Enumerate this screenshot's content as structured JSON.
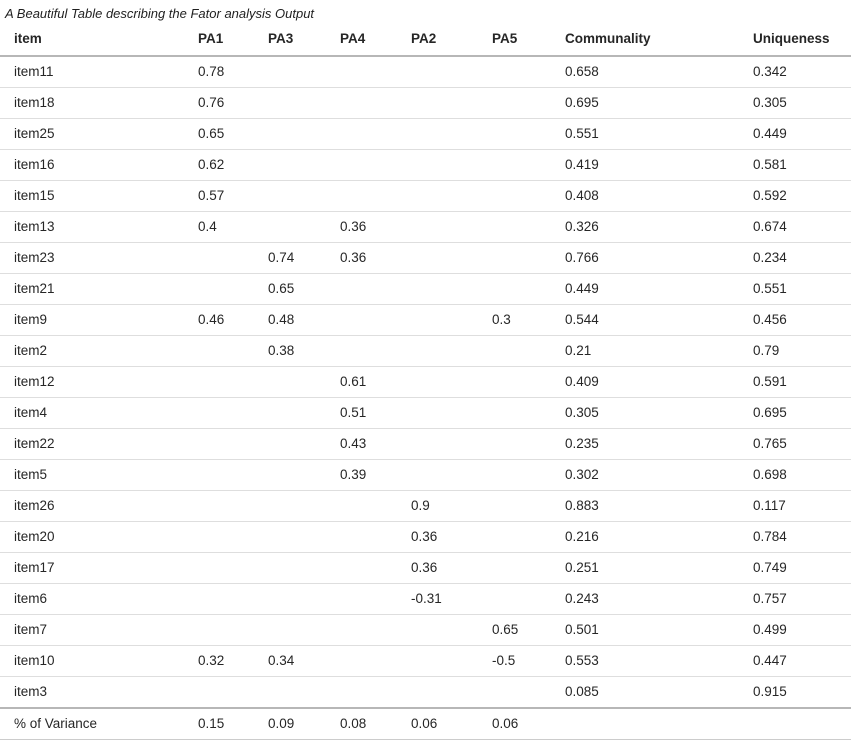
{
  "title": "A Beautiful Table describing the Fator analysis Output",
  "colors": {
    "text": "#262626",
    "row_border": "#dedede",
    "header_border": "#b7b7b7",
    "background": "#ffffff"
  },
  "chart_data": {
    "type": "table",
    "title": "A Beautiful Table describing the Fator analysis Output",
    "columns": [
      "item",
      "PA1",
      "PA3",
      "PA4",
      "PA2",
      "PA5",
      "Communality",
      "Uniqueness"
    ],
    "rows": [
      [
        "item11",
        "0.78",
        "",
        "",
        "",
        "",
        "0.658",
        "0.342"
      ],
      [
        "item18",
        "0.76",
        "",
        "",
        "",
        "",
        "0.695",
        "0.305"
      ],
      [
        "item25",
        "0.65",
        "",
        "",
        "",
        "",
        "0.551",
        "0.449"
      ],
      [
        "item16",
        "0.62",
        "",
        "",
        "",
        "",
        "0.419",
        "0.581"
      ],
      [
        "item15",
        "0.57",
        "",
        "",
        "",
        "",
        "0.408",
        "0.592"
      ],
      [
        "item13",
        "0.4",
        "",
        "0.36",
        "",
        "",
        "0.326",
        "0.674"
      ],
      [
        "item23",
        "",
        "0.74",
        "0.36",
        "",
        "",
        "0.766",
        "0.234"
      ],
      [
        "item21",
        "",
        "0.65",
        "",
        "",
        "",
        "0.449",
        "0.551"
      ],
      [
        "item9",
        "0.46",
        "0.48",
        "",
        "",
        "0.3",
        "0.544",
        "0.456"
      ],
      [
        "item2",
        "",
        "0.38",
        "",
        "",
        "",
        "0.21",
        "0.79"
      ],
      [
        "item12",
        "",
        "",
        "0.61",
        "",
        "",
        "0.409",
        "0.591"
      ],
      [
        "item4",
        "",
        "",
        "0.51",
        "",
        "",
        "0.305",
        "0.695"
      ],
      [
        "item22",
        "",
        "",
        "0.43",
        "",
        "",
        "0.235",
        "0.765"
      ],
      [
        "item5",
        "",
        "",
        "0.39",
        "",
        "",
        "0.302",
        "0.698"
      ],
      [
        "item26",
        "",
        "",
        "",
        "0.9",
        "",
        "0.883",
        "0.117"
      ],
      [
        "item20",
        "",
        "",
        "",
        "0.36",
        "",
        "0.216",
        "0.784"
      ],
      [
        "item17",
        "",
        "",
        "",
        "0.36",
        "",
        "0.251",
        "0.749"
      ],
      [
        "item6",
        "",
        "",
        "",
        "-0.31",
        "",
        "0.243",
        "0.757"
      ],
      [
        "item7",
        "",
        "",
        "",
        "",
        "0.65",
        "0.501",
        "0.499"
      ],
      [
        "item10",
        "0.32",
        "0.34",
        "",
        "",
        "-0.5",
        "0.553",
        "0.447"
      ],
      [
        "item3",
        "",
        "",
        "",
        "",
        "",
        "0.085",
        "0.915"
      ],
      [
        "% of Variance",
        "0.15",
        "0.09",
        "0.08",
        "0.06",
        "0.06",
        "",
        ""
      ]
    ],
    "summary_row_label": "% of Variance",
    "layout": {
      "alignment": "left",
      "grid": "horizontal-rules-only"
    }
  }
}
